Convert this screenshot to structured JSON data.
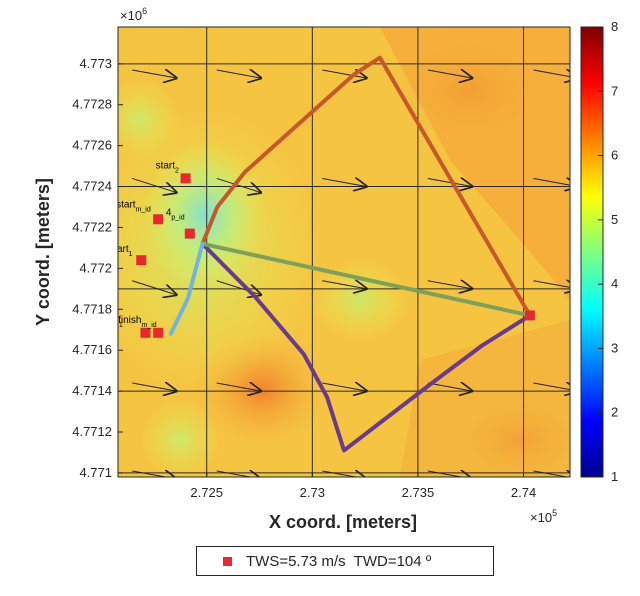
{
  "chart_data": {
    "type": "heatmap",
    "xlabel": "X coord. [meters]",
    "ylabel": "Y coord. [meters]",
    "x_exponent_label": "×10",
    "x_exponent": "5",
    "y_exponent_label": "×10",
    "y_exponent": "6",
    "xlim": [
      272080,
      274220
    ],
    "ylim": [
      4770980,
      4773180
    ],
    "x_ticks": [
      272500,
      273000,
      273500,
      274000
    ],
    "x_tick_labels": [
      "2.725",
      "2.73",
      "2.735",
      "2.74"
    ],
    "y_ticks": [
      4771000,
      4771200,
      4771400,
      4771600,
      4771800,
      4772000,
      4772200,
      4772400,
      4772600,
      4772800,
      4773000
    ],
    "y_tick_labels": [
      "4.771",
      "4.7712",
      "4.7714",
      "4.7716",
      "4.7718",
      "4.772",
      "4.7722",
      "4.7724",
      "4.7726",
      "4.7728",
      "4.773"
    ],
    "colorbar": {
      "range": [
        1,
        8
      ],
      "ticks": [
        1,
        2,
        3,
        4,
        5,
        6,
        7,
        8
      ],
      "tick_labels": [
        "1",
        "2",
        "3",
        "4",
        "5",
        "6",
        "7",
        "8"
      ],
      "colormap": "jet"
    },
    "grid": true,
    "routes": [
      {
        "color": "#c8572a",
        "x": [
          272480,
          272550,
          272680,
          272950,
          273200,
          273320,
          274030
        ],
        "y": [
          4772120,
          4772300,
          4772470,
          4772720,
          4772950,
          4773030,
          4771770
        ]
      },
      {
        "color": "#6b3a8e",
        "x": [
          272480,
          272730,
          272960,
          273070,
          273150,
          273580,
          273800,
          274030
        ],
        "y": [
          4772120,
          4771860,
          4771580,
          4771370,
          4771110,
          4771450,
          4771620,
          4771770
        ]
      },
      {
        "color": "#7fa05a",
        "x": [
          272480,
          274030
        ],
        "y": [
          4772120,
          4771770
        ]
      },
      {
        "color": "#6fb4e2",
        "x": [
          272330,
          272410,
          272480
        ],
        "y": [
          4771680,
          4771850,
          4772120
        ]
      }
    ],
    "markers": [
      {
        "label": "start",
        "sub": "2",
        "x": 272400,
        "y": 4772440
      },
      {
        "label": "start",
        "sub": "m_id",
        "x": 272270,
        "y": 4772240
      },
      {
        "label": "start",
        "sub": "1",
        "x": 272190,
        "y": 4772040
      },
      {
        "label": "4",
        "sub": "p_id",
        "x": 272420,
        "y": 4772170
      },
      {
        "label": "finish",
        "sub": "m_id",
        "x": 272270,
        "y": 4771685
      },
      {
        "label": "finish",
        "sub": "1",
        "x": 272210,
        "y": 4771685
      },
      {
        "label": "",
        "sub": "",
        "x": 274030,
        "y": 4771770
      }
    ],
    "legend": {
      "entries": [
        "TWS=5.73 m/s  TWD=104 º"
      ],
      "placement": "bottom"
    }
  }
}
